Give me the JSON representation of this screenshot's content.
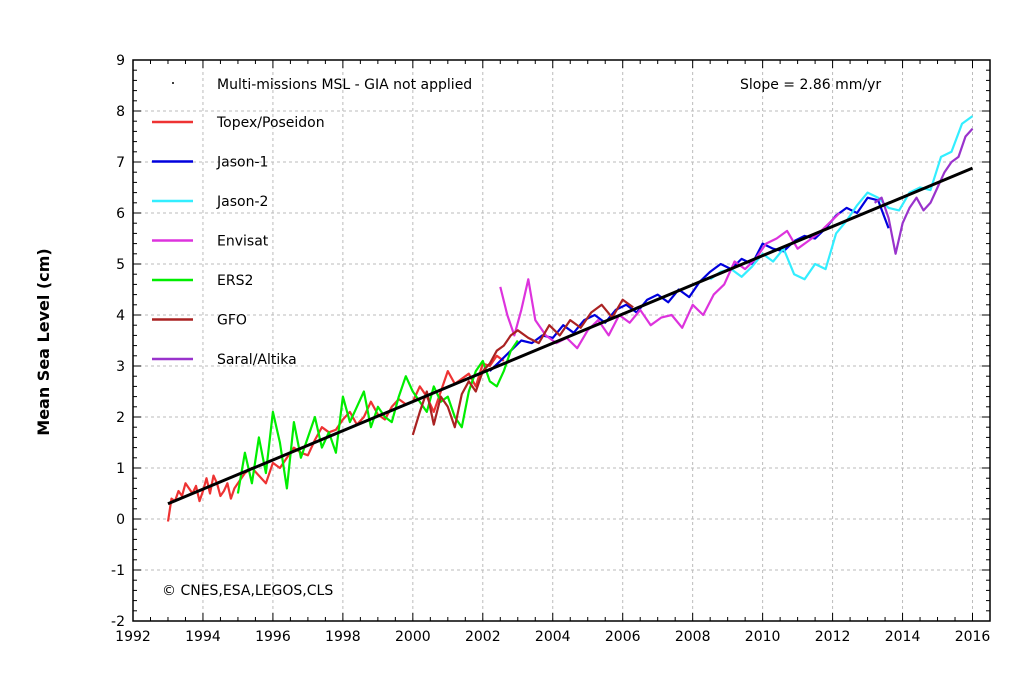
{
  "chart_data": {
    "type": "line",
    "title": "",
    "xlabel": "",
    "ylabel": "Mean Sea Level (cm)",
    "xlim": [
      1992,
      2016.5
    ],
    "ylim": [
      -2,
      9
    ],
    "xticks": [
      1992,
      1994,
      1996,
      1998,
      2000,
      2002,
      2004,
      2006,
      2008,
      2010,
      2012,
      2014,
      2016
    ],
    "yticks": [
      -2,
      -1,
      0,
      1,
      2,
      3,
      4,
      5,
      6,
      7,
      8,
      9
    ],
    "grid": true,
    "legend_position": "top-left",
    "legend_header": "Multi-missions MSL - GIA not applied",
    "slope_text": "Slope = 2.86 mm/yr",
    "credit": "© CNES,ESA,LEGOS,CLS",
    "trend": {
      "name": "Multi-missions MSL",
      "x": [
        1993.0,
        2016.0
      ],
      "y": [
        0.3,
        6.88
      ],
      "color": "#000000"
    },
    "series": [
      {
        "name": "Topex/Poseidon",
        "color": "#ee3333",
        "x": [
          1993.0,
          1993.1,
          1993.2,
          1993.3,
          1993.4,
          1993.5,
          1993.6,
          1993.7,
          1993.8,
          1993.9,
          1994.0,
          1994.1,
          1994.2,
          1994.3,
          1994.4,
          1994.5,
          1994.6,
          1994.7,
          1994.8,
          1994.9,
          1995.0,
          1995.2,
          1995.4,
          1995.6,
          1995.8,
          1996.0,
          1996.2,
          1996.4,
          1996.6,
          1996.8,
          1997.0,
          1997.2,
          1997.4,
          1997.6,
          1997.8,
          1998.0,
          1998.2,
          1998.4,
          1998.6,
          1998.8,
          1999.0,
          1999.2,
          1999.4,
          1999.6,
          1999.8,
          2000.0,
          2000.2,
          2000.4,
          2000.6,
          2000.8,
          2001.0,
          2001.2,
          2001.4,
          2001.6,
          2001.8,
          2002.0,
          2002.2,
          2002.4,
          2002.6
        ],
        "y": [
          -0.05,
          0.4,
          0.35,
          0.55,
          0.45,
          0.7,
          0.6,
          0.5,
          0.65,
          0.35,
          0.55,
          0.8,
          0.5,
          0.85,
          0.7,
          0.45,
          0.55,
          0.7,
          0.4,
          0.6,
          0.7,
          0.9,
          1.0,
          0.85,
          0.7,
          1.1,
          1.0,
          1.2,
          1.4,
          1.3,
          1.25,
          1.55,
          1.8,
          1.7,
          1.75,
          1.95,
          2.1,
          1.85,
          2.0,
          2.3,
          2.05,
          1.95,
          2.2,
          2.35,
          2.25,
          2.3,
          2.6,
          2.4,
          2.1,
          2.5,
          2.9,
          2.65,
          2.75,
          2.85,
          2.6,
          3.05,
          3.0,
          3.2,
          3.1
        ]
      },
      {
        "name": "Jason-1",
        "color": "#0000dd",
        "x": [
          2002.2,
          2002.5,
          2002.8,
          2003.1,
          2003.4,
          2003.7,
          2004.0,
          2004.3,
          2004.6,
          2004.9,
          2005.2,
          2005.5,
          2005.8,
          2006.1,
          2006.4,
          2006.7,
          2007.0,
          2007.3,
          2007.6,
          2007.9,
          2008.2,
          2008.5,
          2008.8,
          2009.1,
          2009.4,
          2009.7,
          2010.0,
          2010.3,
          2010.6,
          2010.9,
          2011.2,
          2011.5,
          2011.8,
          2012.1,
          2012.4,
          2012.7,
          2013.0,
          2013.3,
          2013.6
        ],
        "y": [
          2.9,
          3.1,
          3.3,
          3.5,
          3.45,
          3.6,
          3.55,
          3.8,
          3.65,
          3.9,
          4.0,
          3.85,
          4.1,
          4.2,
          4.05,
          4.3,
          4.4,
          4.25,
          4.5,
          4.35,
          4.65,
          4.85,
          5.0,
          4.9,
          5.1,
          5.0,
          5.4,
          5.3,
          5.25,
          5.45,
          5.55,
          5.5,
          5.7,
          5.95,
          6.1,
          6.0,
          6.3,
          6.25,
          5.7
        ]
      },
      {
        "name": "Jason-2",
        "color": "#33eeff",
        "x": [
          2008.5,
          2008.8,
          2009.1,
          2009.4,
          2009.7,
          2010.0,
          2010.3,
          2010.6,
          2010.9,
          2011.2,
          2011.5,
          2011.8,
          2012.1,
          2012.4,
          2012.7,
          2013.0,
          2013.3,
          2013.6,
          2013.9,
          2014.2,
          2014.5,
          2014.8,
          2015.1,
          2015.4,
          2015.7,
          2016.0
        ],
        "y": [
          4.7,
          4.85,
          4.9,
          4.75,
          4.95,
          5.2,
          5.05,
          5.3,
          4.8,
          4.7,
          5.0,
          4.9,
          5.6,
          5.85,
          6.15,
          6.4,
          6.3,
          6.1,
          6.05,
          6.4,
          6.5,
          6.45,
          7.1,
          7.2,
          7.75,
          7.9
        ]
      },
      {
        "name": "Envisat",
        "color": "#dd33dd",
        "x": [
          2002.5,
          2002.7,
          2002.9,
          2003.1,
          2003.3,
          2003.5,
          2003.8,
          2004.1,
          2004.4,
          2004.7,
          2005.0,
          2005.3,
          2005.6,
          2005.9,
          2006.2,
          2006.5,
          2006.8,
          2007.1,
          2007.4,
          2007.7,
          2008.0,
          2008.3,
          2008.6,
          2008.9,
          2009.2,
          2009.5,
          2009.8,
          2010.1,
          2010.4,
          2010.7,
          2011.0,
          2011.3,
          2011.6,
          2011.9,
          2012.2
        ],
        "y": [
          4.55,
          4.0,
          3.6,
          4.1,
          4.7,
          3.9,
          3.6,
          3.45,
          3.55,
          3.35,
          3.7,
          3.9,
          3.6,
          4.0,
          3.85,
          4.1,
          3.8,
          3.95,
          4.0,
          3.75,
          4.2,
          4.0,
          4.4,
          4.6,
          5.05,
          4.9,
          5.1,
          5.4,
          5.5,
          5.65,
          5.3,
          5.45,
          5.6,
          5.8,
          6.0
        ]
      },
      {
        "name": "ERS2",
        "color": "#00ee00",
        "x": [
          1995.0,
          1995.2,
          1995.4,
          1995.6,
          1995.8,
          1996.0,
          1996.2,
          1996.4,
          1996.6,
          1996.8,
          1997.0,
          1997.2,
          1997.4,
          1997.6,
          1997.8,
          1998.0,
          1998.2,
          1998.4,
          1998.6,
          1998.8,
          1999.0,
          1999.2,
          1999.4,
          1999.6,
          1999.8,
          2000.0,
          2000.2,
          2000.4,
          2000.6,
          2000.8,
          2001.0,
          2001.2,
          2001.4,
          2001.6,
          2001.8,
          2002.0,
          2002.2,
          2002.4,
          2002.6,
          2002.8,
          2003.0
        ],
        "y": [
          0.5,
          1.3,
          0.7,
          1.6,
          0.9,
          2.1,
          1.5,
          0.6,
          1.9,
          1.2,
          1.6,
          2.0,
          1.4,
          1.7,
          1.3,
          2.4,
          1.9,
          2.2,
          2.5,
          1.8,
          2.2,
          2.0,
          1.9,
          2.4,
          2.8,
          2.5,
          2.3,
          2.1,
          2.6,
          2.3,
          2.4,
          2.0,
          1.8,
          2.5,
          2.9,
          3.1,
          2.7,
          2.6,
          2.9,
          3.3,
          3.5
        ]
      },
      {
        "name": "GFO",
        "color": "#aa2222",
        "x": [
          2000.0,
          2000.2,
          2000.4,
          2000.6,
          2000.8,
          2001.0,
          2001.2,
          2001.4,
          2001.6,
          2001.8,
          2002.0,
          2002.2,
          2002.4,
          2002.6,
          2002.8,
          2003.0,
          2003.3,
          2003.6,
          2003.9,
          2004.2,
          2004.5,
          2004.8,
          2005.1,
          2005.4,
          2005.7,
          2006.0,
          2006.3
        ],
        "y": [
          1.65,
          2.1,
          2.5,
          1.85,
          2.4,
          2.2,
          1.8,
          2.45,
          2.7,
          2.5,
          2.9,
          3.05,
          3.3,
          3.4,
          3.6,
          3.7,
          3.55,
          3.45,
          3.8,
          3.6,
          3.9,
          3.75,
          4.05,
          4.2,
          3.95,
          4.3,
          4.15
        ]
      },
      {
        "name": "Saral/Altika",
        "color": "#9933cc",
        "x": [
          2013.2,
          2013.4,
          2013.6,
          2013.8,
          2014.0,
          2014.2,
          2014.4,
          2014.6,
          2014.8,
          2015.0,
          2015.2,
          2015.4,
          2015.6,
          2015.8,
          2016.0
        ],
        "y": [
          6.2,
          6.3,
          5.9,
          5.2,
          5.8,
          6.1,
          6.3,
          6.05,
          6.2,
          6.5,
          6.8,
          7.0,
          7.1,
          7.5,
          7.65
        ]
      }
    ]
  }
}
